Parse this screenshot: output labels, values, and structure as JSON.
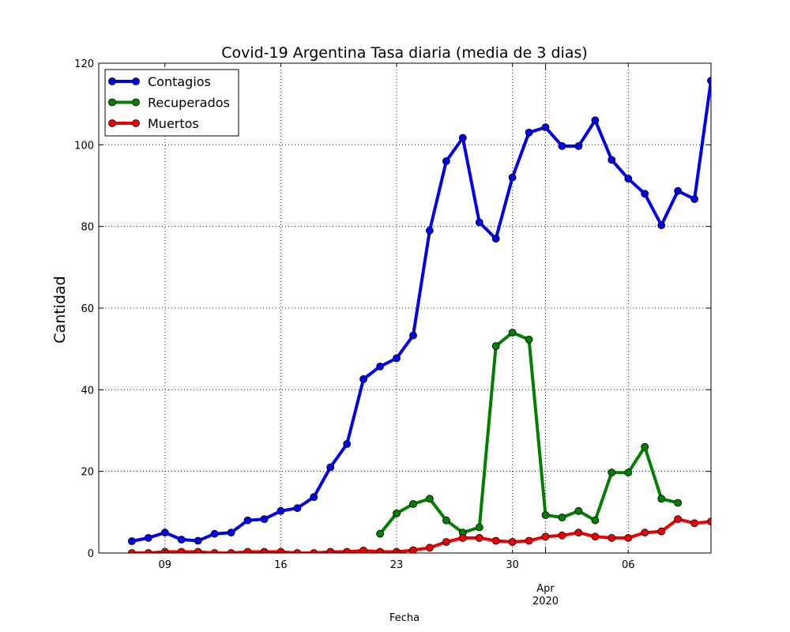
{
  "chart_data": {
    "type": "line",
    "title": "Covid-19 Argentina Tasa diaria (media de 3 dias)",
    "xlabel": "Fecha",
    "ylabel": "Cantidad",
    "ylim": [
      0,
      120
    ],
    "xlim": [
      "2020-03-05",
      "2020-04-10"
    ],
    "y_ticks": [
      0,
      20,
      40,
      60,
      80,
      100,
      120
    ],
    "x_ticks": [
      {
        "date": "2020-03-09",
        "label": "09"
      },
      {
        "date": "2020-03-16",
        "label": "16"
      },
      {
        "date": "2020-03-23",
        "label": "23"
      },
      {
        "date": "2020-03-30",
        "label": "30"
      },
      {
        "date": "2020-04-06",
        "label": "06"
      }
    ],
    "x_major_tick": {
      "date": "2020-04-01",
      "label": "Apr",
      "sublabel": "2020"
    },
    "grid": true,
    "legend_position": "top-left",
    "series": [
      {
        "name": "Contagios",
        "color": "#0000ee",
        "x": [
          "2020-03-07",
          "2020-03-08",
          "2020-03-09",
          "2020-03-10",
          "2020-03-11",
          "2020-03-12",
          "2020-03-13",
          "2020-03-14",
          "2020-03-15",
          "2020-03-16",
          "2020-03-17",
          "2020-03-18",
          "2020-03-19",
          "2020-03-20",
          "2020-03-21",
          "2020-03-22",
          "2020-03-23",
          "2020-03-24",
          "2020-03-25",
          "2020-03-26",
          "2020-03-27",
          "2020-03-28",
          "2020-03-29",
          "2020-03-30",
          "2020-03-31",
          "2020-04-01",
          "2020-04-02",
          "2020-04-03",
          "2020-04-04",
          "2020-04-05",
          "2020-04-06",
          "2020-04-07",
          "2020-04-08",
          "2020-04-09",
          "2020-04-10",
          "2020-04-11"
        ],
        "values": [
          2.9,
          3.7,
          5.0,
          3.3,
          3.0,
          4.7,
          5.0,
          8.0,
          8.3,
          10.3,
          11.0,
          13.7,
          21.0,
          26.7,
          42.6,
          45.7,
          47.7,
          53.3,
          79.0,
          96.0,
          101.7,
          81.0,
          77.0,
          92.0,
          103.0,
          104.3,
          99.7,
          99.7,
          106.0,
          96.3,
          91.7,
          88.0,
          80.3,
          88.7,
          86.7,
          115.7
        ]
      },
      {
        "name": "Recuperados",
        "color": "#007f00",
        "x": [
          "2020-03-22",
          "2020-03-23",
          "2020-03-24",
          "2020-03-25",
          "2020-03-26",
          "2020-03-27",
          "2020-03-28",
          "2020-03-29",
          "2020-03-30",
          "2020-03-31",
          "2020-04-01",
          "2020-04-02",
          "2020-04-03",
          "2020-04-04",
          "2020-04-05",
          "2020-04-06",
          "2020-04-07",
          "2020-04-08",
          "2020-04-09"
        ],
        "values": [
          4.7,
          9.7,
          12.0,
          13.3,
          8.0,
          5.0,
          6.3,
          50.7,
          54.0,
          52.3,
          9.3,
          8.7,
          10.3,
          8.0,
          19.7,
          19.7,
          26.0,
          13.3,
          12.3
        ]
      },
      {
        "name": "Muertos",
        "color": "#ee0000",
        "x": [
          "2020-03-07",
          "2020-03-08",
          "2020-03-09",
          "2020-03-10",
          "2020-03-11",
          "2020-03-12",
          "2020-03-13",
          "2020-03-14",
          "2020-03-15",
          "2020-03-16",
          "2020-03-17",
          "2020-03-18",
          "2020-03-19",
          "2020-03-20",
          "2020-03-21",
          "2020-03-22",
          "2020-03-23",
          "2020-03-24",
          "2020-03-25",
          "2020-03-26",
          "2020-03-27",
          "2020-03-28",
          "2020-03-29",
          "2020-03-30",
          "2020-03-31",
          "2020-04-01",
          "2020-04-02",
          "2020-04-03",
          "2020-04-04",
          "2020-04-05",
          "2020-04-06",
          "2020-04-07",
          "2020-04-08",
          "2020-04-09",
          "2020-04-10",
          "2020-04-11"
        ],
        "values": [
          0,
          0,
          0.3,
          0.3,
          0.3,
          0,
          0,
          0.3,
          0.3,
          0.3,
          0,
          0,
          0.3,
          0.3,
          0.6,
          0.3,
          0.3,
          0.7,
          1.3,
          2.7,
          3.7,
          3.7,
          3.0,
          2.7,
          3.0,
          4.0,
          4.3,
          5.0,
          4.0,
          3.7,
          3.7,
          5.0,
          5.3,
          8.3,
          7.3,
          7.7
        ]
      }
    ]
  }
}
